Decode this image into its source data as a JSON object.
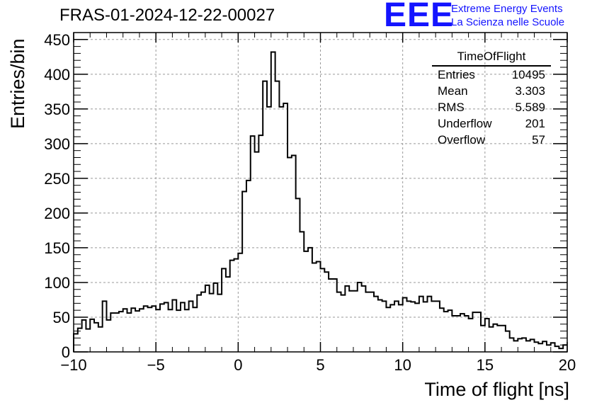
{
  "header": {
    "title": "FRAS-01-2024-12-22-00027",
    "logo": "EEE",
    "org_line1": "Extreme Energy Events",
    "org_line2": "La Scienza nelle Scuole"
  },
  "stats_box": {
    "title": "TimeOfFlight",
    "rows": [
      {
        "label": "Entries",
        "value": "10495"
      },
      {
        "label": "Mean",
        "value": "3.303"
      },
      {
        "label": "RMS",
        "value": "5.589"
      },
      {
        "label": "Underflow",
        "value": "201"
      },
      {
        "label": "Overflow",
        "value": "57"
      }
    ]
  },
  "colors": {
    "accent": "#1414ff",
    "line": "#000000",
    "grid": "#999999"
  },
  "chart_data": {
    "type": "bar",
    "subtype": "step-histogram",
    "xlabel": "Time of flight [ns]",
    "ylabel": "Entries/bin",
    "xlim": [
      -10,
      20
    ],
    "ylim": [
      0,
      460
    ],
    "grid": true,
    "bin_width": 0.25,
    "x_ticks": [
      -10,
      -5,
      0,
      5,
      10,
      15,
      20
    ],
    "x_tick_labels": [
      "−10",
      "−5",
      "0",
      "5",
      "10",
      "15",
      "20"
    ],
    "y_ticks": [
      0,
      50,
      100,
      150,
      200,
      250,
      300,
      350,
      400,
      450
    ],
    "y_tick_labels": [
      "0",
      "50",
      "100",
      "150",
      "200",
      "250",
      "300",
      "350",
      "400",
      "450"
    ],
    "values": [
      26,
      34,
      46,
      33,
      47,
      42,
      36,
      73,
      46,
      56,
      56,
      58,
      62,
      56,
      63,
      59,
      62,
      66,
      64,
      66,
      61,
      69,
      71,
      61,
      75,
      60,
      71,
      61,
      73,
      64,
      82,
      86,
      96,
      84,
      99,
      83,
      120,
      108,
      132,
      134,
      142,
      231,
      247,
      311,
      288,
      312,
      390,
      353,
      432,
      390,
      353,
      358,
      280,
      283,
      221,
      173,
      145,
      150,
      128,
      130,
      120,
      115,
      105,
      105,
      86,
      82,
      95,
      88,
      88,
      100,
      95,
      86,
      86,
      80,
      75,
      73,
      64,
      68,
      73,
      68,
      78,
      73,
      72,
      70,
      80,
      72,
      80,
      73,
      73,
      63,
      58,
      60,
      52,
      52,
      55,
      52,
      48,
      57,
      57,
      38,
      48,
      36,
      40,
      38,
      38,
      30,
      20,
      16,
      19,
      20,
      16,
      18,
      14,
      12,
      15,
      10,
      13,
      8,
      5,
      10
    ]
  }
}
